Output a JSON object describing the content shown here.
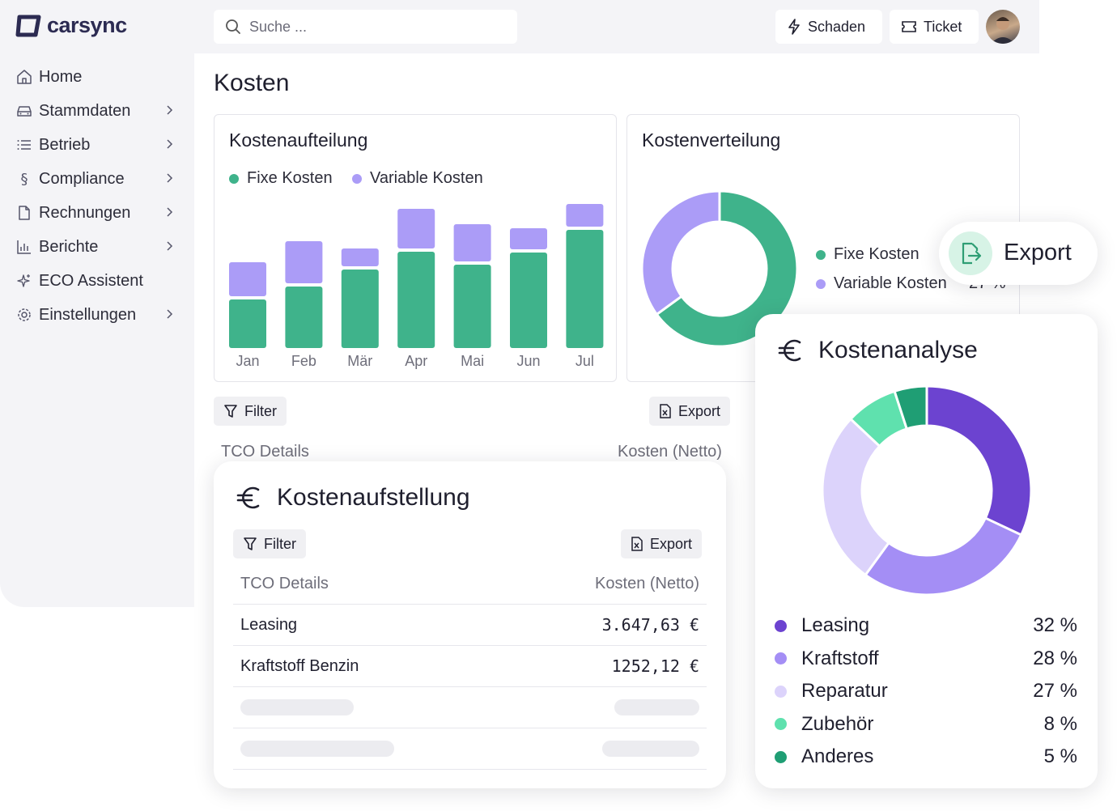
{
  "brand": {
    "name": "carsync"
  },
  "sidebar": {
    "items": [
      {
        "label": "Home",
        "icon": "home-icon",
        "chevron": false
      },
      {
        "label": "Stammdaten",
        "icon": "car-icon",
        "chevron": true
      },
      {
        "label": "Betrieb",
        "icon": "list-icon",
        "chevron": true
      },
      {
        "label": "Compliance",
        "icon": "section-icon",
        "chevron": true
      },
      {
        "label": "Rechnungen",
        "icon": "document-icon",
        "chevron": true
      },
      {
        "label": "Berichte",
        "icon": "bar-chart-icon",
        "chevron": true
      },
      {
        "label": "ECO Assistent",
        "icon": "sparkle-icon",
        "chevron": false
      },
      {
        "label": "Einstellungen",
        "icon": "gear-icon",
        "chevron": true
      }
    ]
  },
  "header": {
    "search_placeholder": "Suche ...",
    "schaden_label": "Schaden",
    "ticket_label": "Ticket"
  },
  "page": {
    "title": "Kosten"
  },
  "cost_breakdown": {
    "title": "Kostenaufteilung",
    "legend": [
      "Fixe Kosten",
      "Variable Kosten"
    ]
  },
  "cost_distribution": {
    "title": "Kostenverteilung",
    "legend": [
      "Fixe Kosten",
      "Variable Kosten"
    ],
    "partial_label": "27 %"
  },
  "export_popup": {
    "label": "Export"
  },
  "background_table": {
    "filter_label": "Filter",
    "export_label": "Export",
    "col_left": "TCO Details",
    "col_right": "Kosten (Netto)"
  },
  "cost_list": {
    "title": "Kostenaufstellung",
    "filter_label": "Filter",
    "export_label": "Export",
    "col_left": "TCO Details",
    "col_right": "Kosten (Netto)",
    "rows": [
      {
        "label": "Leasing",
        "value": "3.647,63 €"
      },
      {
        "label": "Kraftstoff Benzin",
        "value": "1252,12 €"
      }
    ]
  },
  "cost_analysis": {
    "title": "Kostenanalyse",
    "items": [
      {
        "label": "Leasing",
        "pct_label": "32 %"
      },
      {
        "label": "Kraftstoff",
        "pct_label": "28 %"
      },
      {
        "label": "Reparatur",
        "pct_label": "27 %"
      },
      {
        "label": "Zubehör",
        "pct_label": "8 %"
      },
      {
        "label": "Anderes",
        "pct_label": "5 %"
      }
    ]
  },
  "colors": {
    "fixed": "#3fb38b",
    "variable": "#ab9cf7",
    "leasing": "#6c43d0",
    "kraftstoff": "#a48ef5",
    "reparatur": "#dcd3fb",
    "zubehoer": "#5fe1ae",
    "anderes": "#1f9e74"
  },
  "chart_data": [
    {
      "type": "bar",
      "title": "Kostenaufteilung",
      "categories": [
        "Jan",
        "Feb",
        "Mär",
        "Apr",
        "Mai",
        "Jun",
        "Jul"
      ],
      "stacked": true,
      "series": [
        {
          "name": "Fixe Kosten",
          "values": [
            60,
            76,
            97,
            119,
            103,
            118,
            146
          ]
        },
        {
          "name": "Variable Kosten",
          "values": [
            42,
            52,
            22,
            49,
            46,
            26,
            28
          ]
        }
      ],
      "grid": false,
      "legend": "top-left"
    },
    {
      "type": "pie",
      "title": "Kostenverteilung",
      "donut": true,
      "labels": [
        "Fixe Kosten",
        "Variable Kosten"
      ],
      "values": [
        65,
        35
      ]
    },
    {
      "type": "pie",
      "title": "Kostenanalyse",
      "donut": true,
      "labels": [
        "Leasing",
        "Kraftstoff",
        "Reparatur",
        "Zubehör",
        "Anderes"
      ],
      "values": [
        32,
        28,
        27,
        8,
        5
      ]
    }
  ]
}
